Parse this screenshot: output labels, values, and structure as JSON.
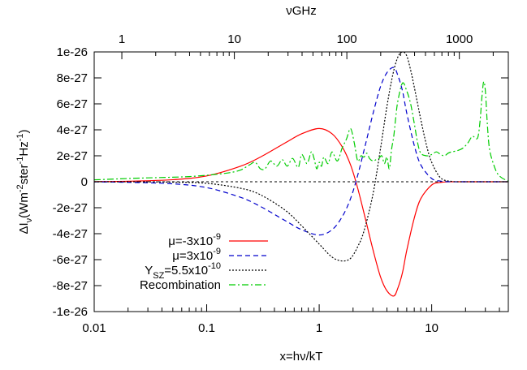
{
  "chart_data": {
    "type": "line",
    "xlabel": "x=hν/kT",
    "x2label": "νGHz",
    "ylabel": {
      "main": "ΔI",
      "sub": "ν",
      "rest": "(Wm",
      "p1": "-2",
      "rest2": "ster",
      "p2": "-1",
      "rest3": "Hz",
      "p3": "-1",
      "close": ")"
    },
    "x_scale": "log",
    "xlim": [
      0.01,
      48
    ],
    "ylim": [
      -1e-26,
      1e-26
    ],
    "x_ticks": [
      {
        "value": 0.01,
        "label": "0.01"
      },
      {
        "value": 0.1,
        "label": "0.1"
      },
      {
        "value": 1,
        "label": "1"
      },
      {
        "value": 10,
        "label": "10"
      }
    ],
    "x2_ticks": [
      {
        "value": 0.01761,
        "label": "1"
      },
      {
        "value": 0.1761,
        "label": "10"
      },
      {
        "value": 1.761,
        "label": "100"
      },
      {
        "value": 17.61,
        "label": "1000"
      }
    ],
    "y_ticks": [
      {
        "value": 1e-26,
        "label": "1e-26"
      },
      {
        "value": 8e-27,
        "label": "8e-27"
      },
      {
        "value": 6e-27,
        "label": "6e-27"
      },
      {
        "value": 4e-27,
        "label": "4e-27"
      },
      {
        "value": 2e-27,
        "label": "2e-27"
      },
      {
        "value": 0,
        "label": "0"
      },
      {
        "value": -2e-27,
        "label": "-2e-27"
      },
      {
        "value": -4e-27,
        "label": "-4e-27"
      },
      {
        "value": -6e-27,
        "label": "-6e-27"
      },
      {
        "value": -8e-27,
        "label": "-8e-27"
      },
      {
        "value": -1e-26,
        "label": "-1e-26"
      }
    ],
    "zero_line": true,
    "legend_position": "bottom-left",
    "series": [
      {
        "name": "μ=-3x10-9",
        "legend": {
          "main": "μ=-3x10",
          "sup": "-9"
        },
        "color": "#ff0000",
        "dash": "solid",
        "x": [
          0.01,
          0.02,
          0.05,
          0.1,
          0.2,
          0.3,
          0.5,
          0.7,
          1.0,
          1.3,
          1.6,
          1.9,
          2.2,
          2.6,
          3.0,
          3.5,
          4.0,
          4.6,
          5.0,
          5.5,
          6.0,
          7.0,
          8.0,
          10,
          12,
          15,
          20,
          30,
          48
        ],
        "y": [
          1e-29,
          4e-29,
          1.6e-28,
          4.5e-28,
          1.2e-27,
          1.9e-27,
          3e-27,
          3.7e-27,
          4.1e-27,
          3.7e-27,
          2.7e-27,
          1.3e-27,
          -5e-28,
          -3e-27,
          -5.2e-27,
          -7.3e-27,
          -8.4e-27,
          -8.8e-27,
          -8.2e-27,
          -7e-27,
          -5.3e-27,
          -2.8e-27,
          -1.3e-27,
          -2.5e-28,
          -5e-29,
          0,
          0,
          0,
          0
        ]
      },
      {
        "name": "μ=3x10-9",
        "legend": {
          "main": "μ=3x10",
          "sup": "-9"
        },
        "color": "#0000cc",
        "dash": "6,4",
        "x": [
          0.01,
          0.02,
          0.05,
          0.1,
          0.2,
          0.3,
          0.5,
          0.7,
          1.0,
          1.3,
          1.6,
          1.9,
          2.2,
          2.6,
          3.0,
          3.5,
          4.0,
          4.6,
          5.0,
          5.5,
          6.0,
          7.0,
          8.0,
          10,
          12,
          15,
          20,
          30,
          48
        ],
        "y": [
          -1e-29,
          -4e-29,
          -1.6e-28,
          -4.5e-28,
          -1.2e-27,
          -1.9e-27,
          -3e-27,
          -3.7e-27,
          -4.1e-27,
          -3.7e-27,
          -2.7e-27,
          -1.3e-27,
          5e-28,
          3e-27,
          5.2e-27,
          7.3e-27,
          8.4e-27,
          8.8e-27,
          8.2e-27,
          7e-27,
          5.3e-27,
          2.8e-27,
          1.3e-27,
          2.5e-28,
          5e-29,
          0,
          0,
          0,
          0
        ]
      },
      {
        "name": "YSZ=5.5x10-10",
        "legend": {
          "main": "Y",
          "sub": "SZ",
          "rest": "=5.5x10",
          "sup": "-10"
        },
        "color": "#000000",
        "dash": "2,2",
        "x": [
          0.01,
          0.02,
          0.05,
          0.1,
          0.2,
          0.3,
          0.5,
          0.7,
          1.0,
          1.3,
          1.6,
          1.9,
          2.2,
          2.5,
          3.0,
          3.5,
          4.0,
          4.5,
          5.0,
          5.5,
          6.0,
          6.5,
          7.0,
          8.0,
          9.0,
          10,
          12,
          15,
          20,
          30,
          48
        ],
        "y": [
          0,
          0,
          -3e-29,
          -1.2e-28,
          -5e-28,
          -1e-27,
          -2.2e-27,
          -3.4e-27,
          -4.8e-27,
          -5.8e-27,
          -6.1e-27,
          -5.9e-27,
          -5e-27,
          -3.8e-27,
          -1e-27,
          2.5e-27,
          5.8e-27,
          8.2e-27,
          9.6e-27,
          1e-26,
          9.7e-27,
          8.6e-27,
          7.3e-27,
          4.8e-27,
          2.8e-27,
          1.5e-27,
          3e-28,
          3e-29,
          0,
          0,
          0
        ]
      },
      {
        "name": "Recombination",
        "legend": {
          "main": "Recombination"
        },
        "color": "#00cc00",
        "dash": "8,3,2,3",
        "x": [
          0.01,
          0.02,
          0.03,
          0.05,
          0.07,
          0.1,
          0.13,
          0.16,
          0.2,
          0.24,
          0.27,
          0.3,
          0.33,
          0.37,
          0.42,
          0.47,
          0.52,
          0.58,
          0.65,
          0.7,
          0.78,
          0.85,
          0.9,
          0.95,
          1.0,
          1.05,
          1.1,
          1.2,
          1.3,
          1.45,
          1.6,
          1.75,
          1.9,
          2.05,
          2.2,
          2.35,
          2.5,
          2.65,
          2.8,
          3.0,
          3.2,
          3.4,
          3.6,
          3.8,
          4.0,
          4.2,
          4.4,
          4.6,
          4.8,
          5.0,
          5.5,
          6.0,
          6.5,
          7.0,
          7.5,
          8.0,
          9.0,
          10,
          11,
          12,
          13,
          14,
          15,
          17,
          19,
          21,
          23,
          25,
          26,
          27,
          28,
          29,
          30,
          31,
          32,
          33,
          35,
          38,
          42,
          48
        ],
        "y": [
          1.5e-28,
          2.5e-28,
          3e-28,
          3.5e-28,
          4e-28,
          5e-28,
          6e-28,
          7e-28,
          9e-28,
          1.3e-27,
          1.5e-27,
          1e-27,
          1e-27,
          1.6e-27,
          1.2e-27,
          1.7e-27,
          1.2e-27,
          1.8e-27,
          1.1e-27,
          2.1e-27,
          1.4e-27,
          2.3e-27,
          1.8e-27,
          1e-27,
          1.5e-27,
          1.2e-27,
          1.9e-27,
          1.4e-27,
          2.3e-27,
          1.6e-27,
          2.6e-27,
          3.3e-27,
          4.1e-27,
          3e-27,
          1.6e-27,
          2e-27,
          1.9e-27,
          2.2e-27,
          1.8e-27,
          1.6e-27,
          1.7e-27,
          1.8e-27,
          2e-27,
          1.4e-27,
          1.9e-27,
          1e-27,
          2.5e-27,
          3.5e-27,
          5e-27,
          6.2e-27,
          7.6e-27,
          7e-27,
          6e-27,
          4.5e-27,
          3e-27,
          2.2e-27,
          2e-27,
          2.1e-27,
          2.3e-27,
          2.1e-27,
          2e-27,
          2.2e-27,
          2.3e-27,
          2.4e-27,
          2.6e-27,
          3e-27,
          3.5e-27,
          3.3e-27,
          3.6e-27,
          4.8e-27,
          6.6e-27,
          7.7e-27,
          7e-27,
          4.9e-27,
          3.2e-27,
          2.3e-27,
          1.5e-27,
          7e-28,
          3e-28,
          5e-29
        ]
      }
    ]
  }
}
